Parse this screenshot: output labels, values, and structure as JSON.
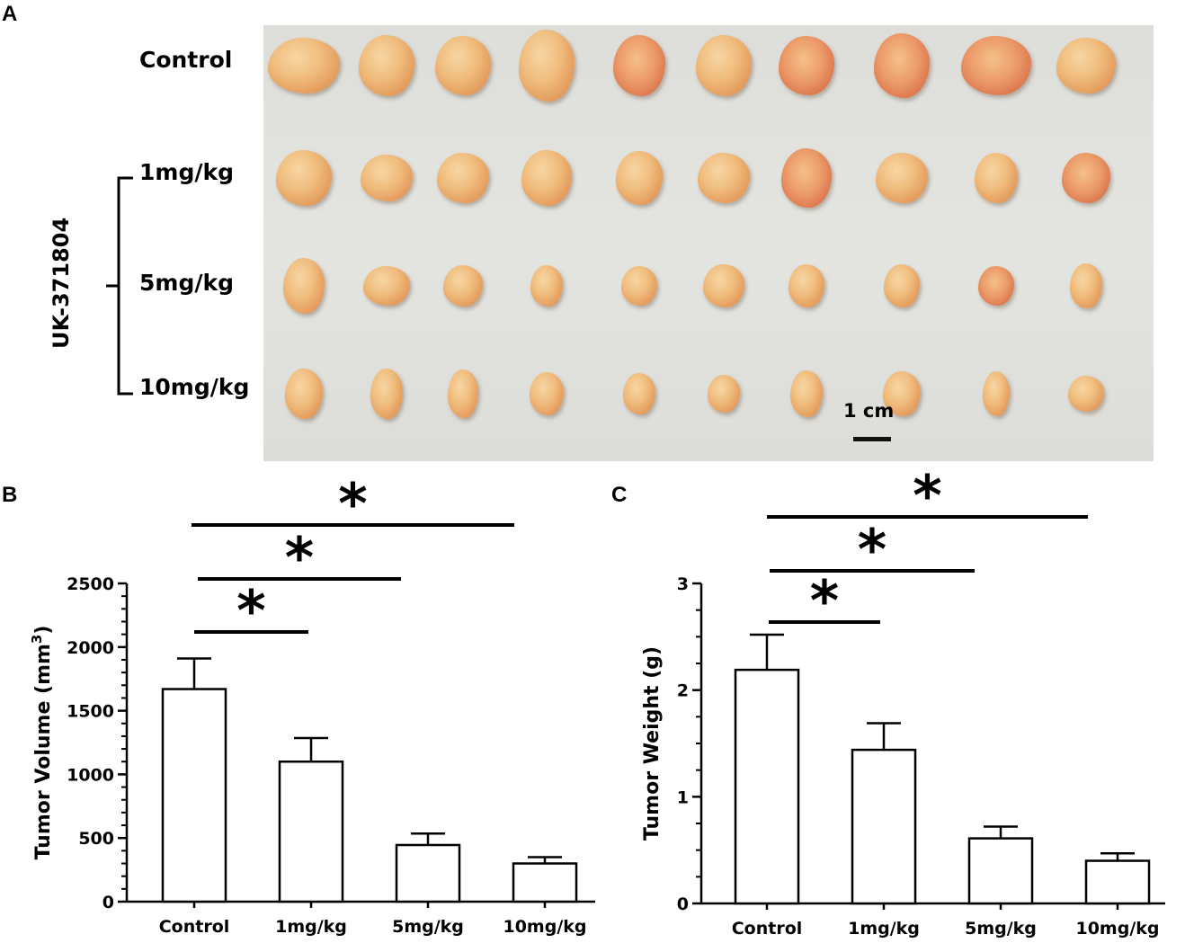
{
  "panels": {
    "a": "A",
    "b": "B",
    "c": "C"
  },
  "photo": {
    "row_labels": [
      "Control",
      "1mg/kg",
      "5mg/kg",
      "10mg/kg"
    ],
    "treatment_label": "UK-371804",
    "scale_bar_label": "1 cm",
    "tumors_per_row": 10
  },
  "significance_marker": "*",
  "chart_data": [
    {
      "type": "bar",
      "panel": "B",
      "categories": [
        "Control",
        "1mg/kg",
        "5mg/kg",
        "10mg/kg"
      ],
      "values": [
        1670,
        1100,
        445,
        300
      ],
      "errors": [
        240,
        185,
        90,
        50
      ],
      "ylabel": "Tumor Volume (mm",
      "ylabel_superscript": "3",
      "ylabel_end": ")",
      "ylim": [
        0,
        2500
      ],
      "yticks": [
        0,
        500,
        1000,
        1500,
        2000,
        2500
      ],
      "significance": [
        {
          "from": "Control",
          "to": "1mg/kg",
          "label": "*"
        },
        {
          "from": "Control",
          "to": "5mg/kg",
          "label": "*"
        },
        {
          "from": "Control",
          "to": "10mg/kg",
          "label": "*"
        }
      ]
    },
    {
      "type": "bar",
      "panel": "C",
      "categories": [
        "Control",
        "1mg/kg",
        "5mg/kg",
        "10mg/kg"
      ],
      "values": [
        2.19,
        1.44,
        0.61,
        0.4
      ],
      "errors": [
        0.33,
        0.25,
        0.11,
        0.07
      ],
      "ylabel": "Tumor Weight (g)",
      "ylim": [
        0,
        3
      ],
      "yticks": [
        0,
        1,
        2,
        3
      ],
      "significance": [
        {
          "from": "Control",
          "to": "1mg/kg",
          "label": "*"
        },
        {
          "from": "Control",
          "to": "5mg/kg",
          "label": "*"
        },
        {
          "from": "Control",
          "to": "10mg/kg",
          "label": "*"
        }
      ]
    }
  ]
}
